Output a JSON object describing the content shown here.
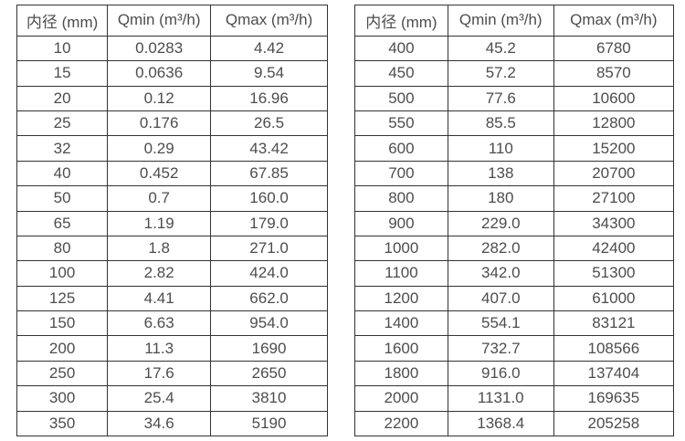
{
  "page": {
    "background_color": "#ffffff",
    "border_color": "#333333",
    "text_color": "#4d4d4d"
  },
  "tables": [
    {
      "name": "flow-spec-small-diameters",
      "headers": [
        "内径 (mm)",
        "Qmin (m³/h)",
        "Qmax (m³/h)"
      ],
      "rows": [
        [
          "10",
          "0.0283",
          "4.42"
        ],
        [
          "15",
          "0.0636",
          "9.54"
        ],
        [
          "20",
          "0.12",
          "16.96"
        ],
        [
          "25",
          "0.176",
          "26.5"
        ],
        [
          "32",
          "0.29",
          "43.42"
        ],
        [
          "40",
          "0.452",
          "67.85"
        ],
        [
          "50",
          "0.7",
          "160.0"
        ],
        [
          "65",
          "1.19",
          "179.0"
        ],
        [
          "80",
          "1.8",
          "271.0"
        ],
        [
          "100",
          "2.82",
          "424.0"
        ],
        [
          "125",
          "4.41",
          "662.0"
        ],
        [
          "150",
          "6.63",
          "954.0"
        ],
        [
          "200",
          "11.3",
          "1690"
        ],
        [
          "250",
          "17.6",
          "2650"
        ],
        [
          "300",
          "25.4",
          "3810"
        ],
        [
          "350",
          "34.6",
          "5190"
        ]
      ]
    },
    {
      "name": "flow-spec-large-diameters",
      "headers": [
        "内径 (mm)",
        "Qmin (m³/h)",
        "Qmax (m³/h)"
      ],
      "rows": [
        [
          "400",
          "45.2",
          "6780"
        ],
        [
          "450",
          "57.2",
          "8570"
        ],
        [
          "500",
          "77.6",
          "10600"
        ],
        [
          "550",
          "85.5",
          "12800"
        ],
        [
          "600",
          "110",
          "15200"
        ],
        [
          "700",
          "138",
          "20700"
        ],
        [
          "800",
          "180",
          "27100"
        ],
        [
          "900",
          "229.0",
          "34300"
        ],
        [
          "1000",
          "282.0",
          "42400"
        ],
        [
          "1100",
          "342.0",
          "51300"
        ],
        [
          "1200",
          "407.0",
          "61000"
        ],
        [
          "1400",
          "554.1",
          "83121"
        ],
        [
          "1600",
          "732.7",
          "108566"
        ],
        [
          "1800",
          "916.0",
          "137404"
        ],
        [
          "2000",
          "1131.0",
          "169635"
        ],
        [
          "2200",
          "1368.4",
          "205258"
        ]
      ]
    }
  ]
}
